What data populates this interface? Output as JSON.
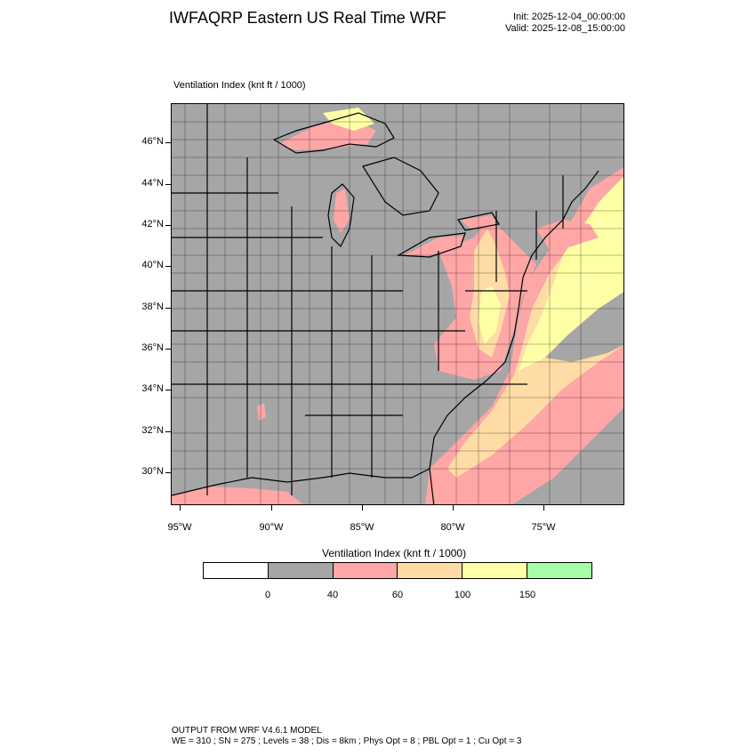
{
  "header": {
    "title": "IWFAQRP Eastern US Real Time WRF",
    "init": "Init: 2025-12-04_00:00:00",
    "valid": "Valid: 2025-12-08_15:00:00"
  },
  "plot": {
    "label": "Ventilation Index   (knt ft / 1000)"
  },
  "axes": {
    "lat_labels": [
      "46°N",
      "44°N",
      "42°N",
      "40°N",
      "38°N",
      "36°N",
      "34°N",
      "32°N",
      "30°N"
    ],
    "lon_labels": [
      "95°W",
      "90°W",
      "85°W",
      "80°W",
      "75°W"
    ]
  },
  "colorbar": {
    "title": "Ventilation Index  (knt ft / 1000)",
    "colors": [
      "#ffffff",
      "#a6a6a6",
      "#ffa6a6",
      "#ffdca6",
      "#ffffa6",
      "#a6ffa6"
    ],
    "ticks": [
      "0",
      "40",
      "60",
      "100",
      "150"
    ]
  },
  "footer": {
    "line1": "OUTPUT FROM WRF V4.6.1 MODEL",
    "line2": "WE = 310 ; SN = 275 ; Levels = 38 ; Dis = 8km ; Phys Opt = 8 ; PBL Opt = 1 ; Cu Opt = 3"
  }
}
